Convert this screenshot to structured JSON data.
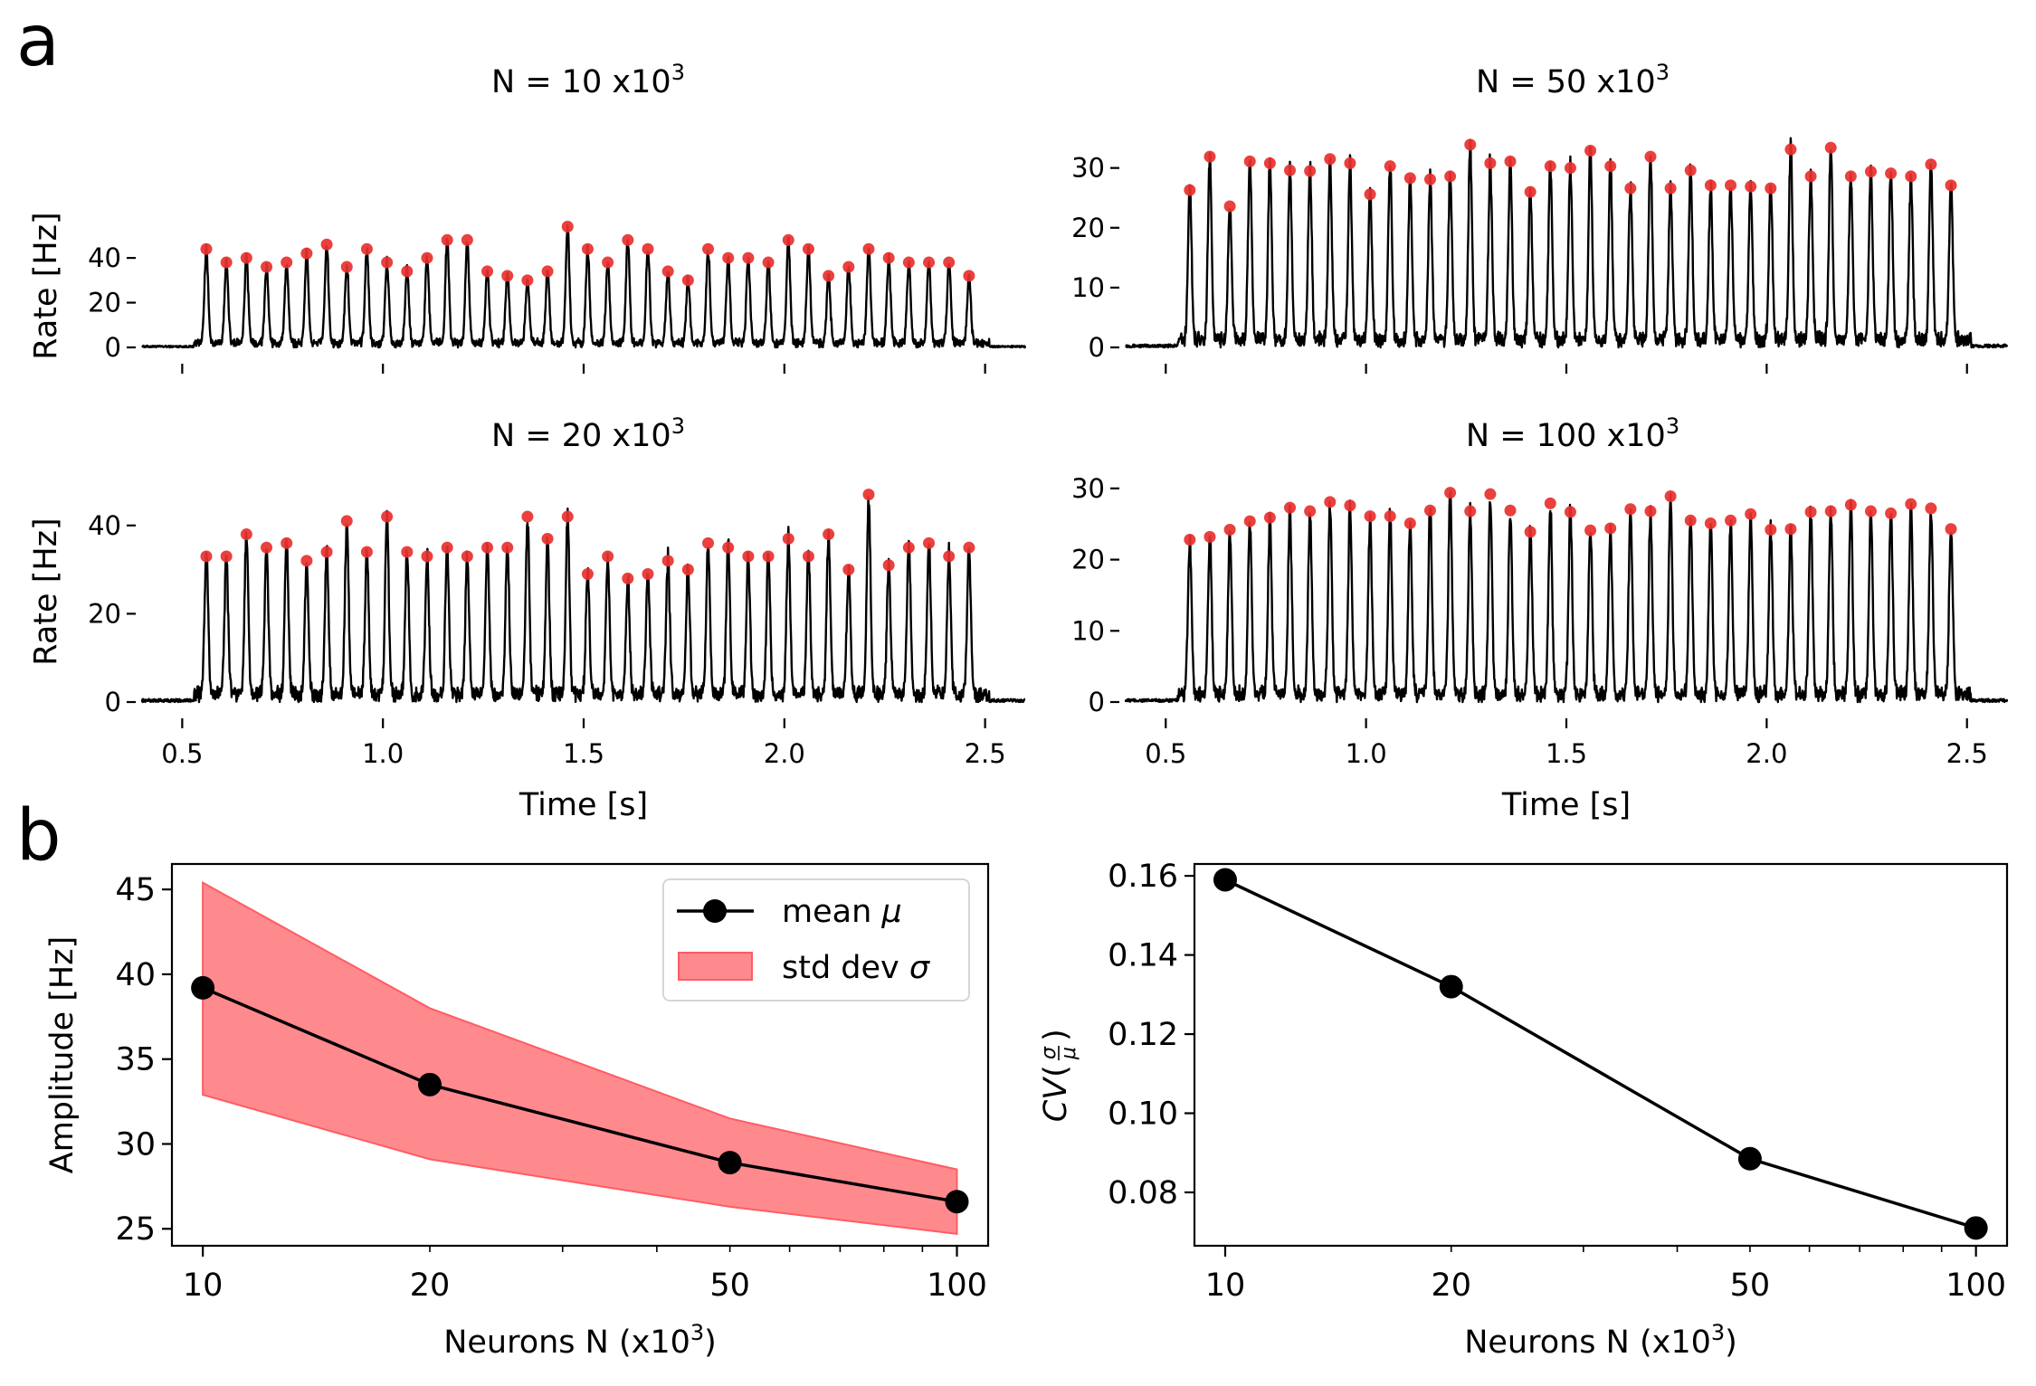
{
  "figure": {
    "panel_a_letter": "a",
    "panel_b_letter": "b"
  },
  "chart_data": [
    {
      "id": "a1",
      "type": "line",
      "title_prefix": "N = 10 x10",
      "title_exp": "3",
      "xlabel": "",
      "ylabel": "Rate [Hz]",
      "xlim": [
        0.4,
        2.6
      ],
      "ylim": [
        0,
        55
      ],
      "yticks": [
        "0",
        "20",
        "40"
      ],
      "xticks": [],
      "start": 0.56,
      "end": 2.5,
      "peak_times": [
        0.56,
        0.61,
        0.66,
        0.71,
        0.76,
        0.81,
        0.86,
        0.91,
        0.96,
        1.01,
        1.06,
        1.11,
        1.16,
        1.21,
        1.26,
        1.31,
        1.36,
        1.41,
        1.46,
        1.51,
        1.56,
        1.61,
        1.66,
        1.71,
        1.76,
        1.81,
        1.86,
        1.91,
        1.96,
        2.01,
        2.06,
        2.11,
        2.16,
        2.21,
        2.26,
        2.31,
        2.36,
        2.41,
        2.46
      ],
      "peak_values": [
        44,
        38,
        40,
        36,
        38,
        42,
        46,
        36,
        44,
        38,
        34,
        40,
        48,
        48,
        34,
        32,
        30,
        34,
        54,
        44,
        38,
        48,
        44,
        34,
        30,
        44,
        40,
        40,
        38,
        48,
        44,
        32,
        36,
        44,
        40,
        38,
        38,
        38,
        32
      ]
    },
    {
      "id": "a2",
      "type": "line",
      "title_prefix": "N = 50 x10",
      "title_exp": "3",
      "xlabel": "",
      "ylabel": "",
      "xlim": [
        0.4,
        2.6
      ],
      "ylim": [
        0,
        36
      ],
      "yticks": [
        "0",
        "10",
        "20",
        "30"
      ],
      "xticks": [],
      "start": 0.56,
      "end": 2.5,
      "peak_times": [
        0.56,
        0.61,
        0.66,
        0.71,
        0.76,
        0.81,
        0.86,
        0.91,
        0.96,
        1.01,
        1.06,
        1.11,
        1.16,
        1.21,
        1.26,
        1.31,
        1.36,
        1.41,
        1.46,
        1.51,
        1.56,
        1.61,
        1.66,
        1.71,
        1.76,
        1.81,
        1.86,
        1.91,
        1.96,
        2.01,
        2.06,
        2.11,
        2.16,
        2.21,
        2.26,
        2.31,
        2.36,
        2.41,
        2.46
      ],
      "peak_values": [
        26.3,
        31.9,
        23.6,
        31.1,
        30.8,
        29.6,
        29.5,
        31.5,
        30.8,
        25.6,
        30.3,
        28.3,
        28.1,
        28.6,
        33.9,
        30.8,
        31.1,
        26.0,
        30.3,
        30.0,
        32.9,
        30.3,
        26.6,
        31.9,
        26.6,
        29.6,
        27.1,
        27.1,
        26.9,
        26.6,
        33.1,
        28.6,
        33.4,
        28.6,
        29.4,
        29.1,
        28.6,
        30.6,
        27.1
      ]
    },
    {
      "id": "a3",
      "type": "line",
      "title_prefix": "N = 20 x10",
      "title_exp": "3",
      "xlabel": "Time [s]",
      "ylabel": "Rate [Hz]",
      "xlim": [
        0.4,
        2.6
      ],
      "ylim": [
        0,
        50
      ],
      "yticks": [
        "0",
        "20",
        "40"
      ],
      "xticks": [
        "0.5",
        "1.0",
        "1.5",
        "2.0",
        "2.5"
      ],
      "start": 0.56,
      "end": 2.5,
      "peak_times": [
        0.56,
        0.61,
        0.66,
        0.71,
        0.76,
        0.81,
        0.86,
        0.91,
        0.96,
        1.01,
        1.06,
        1.11,
        1.16,
        1.21,
        1.26,
        1.31,
        1.36,
        1.41,
        1.46,
        1.51,
        1.56,
        1.61,
        1.66,
        1.71,
        1.76,
        1.81,
        1.86,
        1.91,
        1.96,
        2.01,
        2.06,
        2.11,
        2.16,
        2.21,
        2.26,
        2.31,
        2.36,
        2.41,
        2.46
      ],
      "peak_values": [
        33,
        33,
        38,
        35,
        36,
        32,
        34,
        41,
        34,
        42,
        34,
        33,
        35,
        33,
        35,
        35,
        42,
        37,
        42,
        29,
        33,
        28,
        29,
        32,
        30,
        36,
        35,
        33,
        33,
        37,
        33,
        38,
        30,
        47,
        31,
        35,
        36,
        33,
        35
      ]
    },
    {
      "id": "a4",
      "type": "line",
      "title_prefix": "N = 100 x10",
      "title_exp": "3",
      "xlabel": "Time [s]",
      "ylabel": "",
      "xlim": [
        0.4,
        2.6
      ],
      "ylim": [
        0,
        31
      ],
      "yticks": [
        "0",
        "10",
        "20",
        "30"
      ],
      "xticks": [
        "0.5",
        "1.0",
        "1.5",
        "2.0",
        "2.5"
      ],
      "start": 0.56,
      "end": 2.5,
      "peak_times": [
        0.56,
        0.61,
        0.66,
        0.71,
        0.76,
        0.81,
        0.86,
        0.91,
        0.96,
        1.01,
        1.06,
        1.11,
        1.16,
        1.21,
        1.26,
        1.31,
        1.36,
        1.41,
        1.46,
        1.51,
        1.56,
        1.61,
        1.66,
        1.71,
        1.76,
        1.81,
        1.86,
        1.91,
        1.96,
        2.01,
        2.06,
        2.11,
        2.16,
        2.21,
        2.26,
        2.31,
        2.36,
        2.41,
        2.46
      ],
      "peak_values": [
        22.8,
        23.2,
        24.2,
        25.4,
        25.9,
        27.3,
        26.8,
        28.1,
        27.6,
        26.1,
        26.1,
        25.1,
        26.9,
        29.4,
        26.8,
        29.2,
        26.9,
        23.9,
        27.9,
        26.7,
        24.1,
        24.4,
        27.1,
        26.8,
        28.9,
        25.5,
        25.1,
        25.5,
        26.4,
        24.2,
        24.3,
        26.7,
        26.8,
        27.7,
        26.8,
        26.5,
        27.8,
        27.2,
        24.3
      ]
    },
    {
      "id": "b1",
      "type": "line",
      "xscale": "log",
      "xlabel_prefix": "Neurons N (x10",
      "xlabel_exp": "3",
      "xlabel_suffix": ")",
      "ylabel": "Amplitude [Hz]",
      "xlim": [
        9.1,
        110
      ],
      "ylim": [
        24,
        46.5
      ],
      "x": [
        10,
        20,
        50,
        100
      ],
      "xticks": [
        "10",
        "20",
        "50",
        "100"
      ],
      "yticks": [
        "25",
        "30",
        "35",
        "40",
        "45"
      ],
      "series": [
        {
          "name": "mean μ",
          "values": [
            39.2,
            33.5,
            28.9,
            26.6
          ]
        },
        {
          "name": "std dev σ",
          "lower": [
            32.9,
            29.1,
            26.3,
            24.7
          ],
          "upper": [
            45.4,
            38.0,
            31.5,
            28.5
          ]
        }
      ],
      "legend": {
        "mean_prefix": "mean ",
        "mean_symbol": "μ",
        "std_prefix": "std dev ",
        "std_symbol": "σ"
      },
      "legend_position": "top-right"
    },
    {
      "id": "b2",
      "type": "line",
      "xscale": "log",
      "xlabel_prefix": "Neurons N (x10",
      "xlabel_exp": "3",
      "xlabel_suffix": ")",
      "ylabel_prefix": "CV",
      "ylabel_sigma": "σ",
      "ylabel_mu": "μ",
      "xlim": [
        9.1,
        110
      ],
      "ylim": [
        0.0665,
        0.163
      ],
      "x": [
        10,
        20,
        50,
        100
      ],
      "xticks": [
        "10",
        "20",
        "50",
        "100"
      ],
      "yticks": [
        "0.08",
        "0.10",
        "0.12",
        "0.14",
        "0.16"
      ],
      "series": [
        {
          "name": "CV",
          "values": [
            0.159,
            0.132,
            0.0885,
            0.071
          ]
        }
      ]
    }
  ],
  "colors": {
    "line": "#000000",
    "peak": "#e8302e",
    "fill": "#ff8a8e",
    "fill_edge": "#ff5c63"
  }
}
